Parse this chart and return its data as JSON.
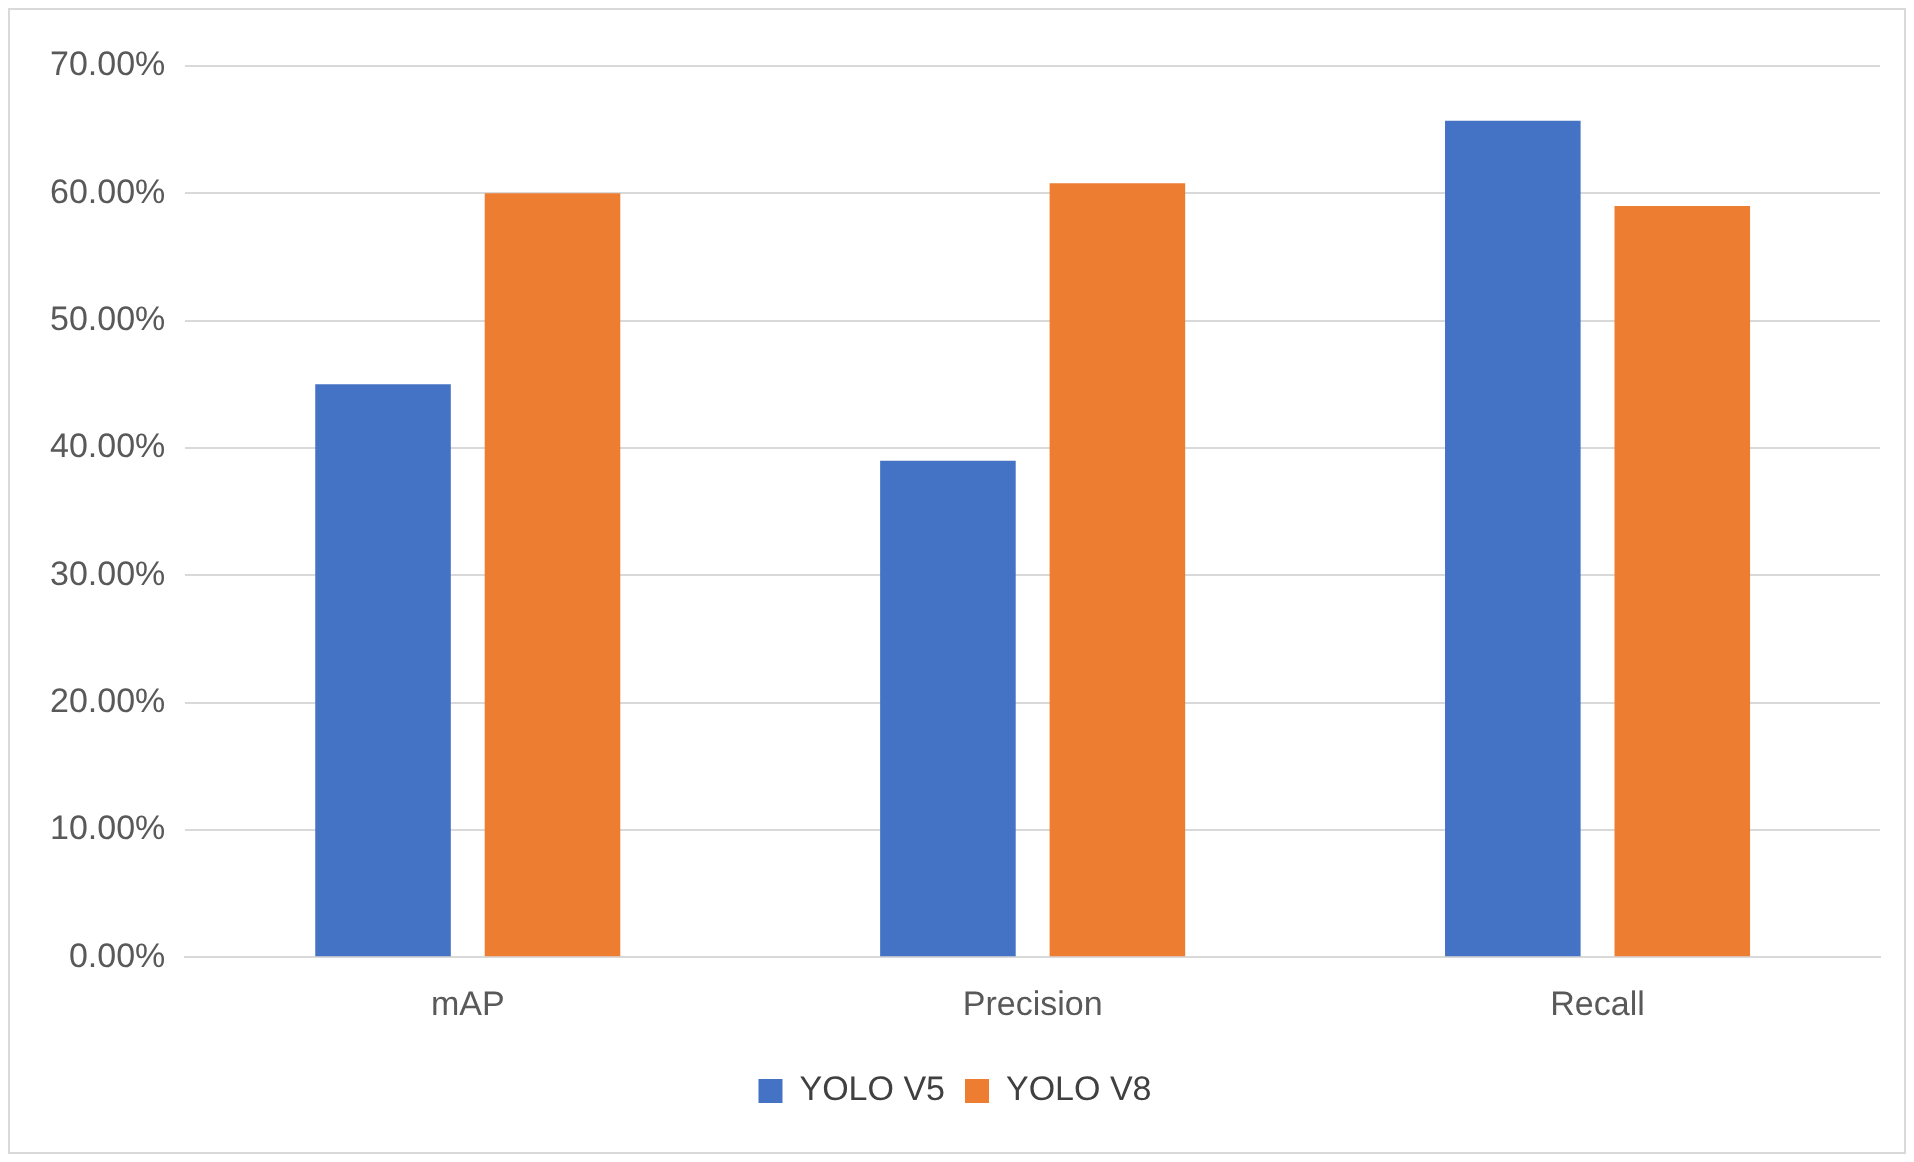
{
  "chart_data": {
    "type": "bar",
    "categories": [
      "mAP",
      "Precision",
      "Recall"
    ],
    "series": [
      {
        "name": "YOLO V5",
        "color": "#4472c4",
        "values": [
          45,
          39,
          65.7
        ]
      },
      {
        "name": "YOLO V8",
        "color": "#ed7d31",
        "values": [
          60,
          60.8,
          59
        ]
      }
    ],
    "ylim": [
      0,
      70
    ],
    "yticks": [
      {
        "value": 0,
        "label": "0.00%"
      },
      {
        "value": 10,
        "label": "10.00%"
      },
      {
        "value": 20,
        "label": "20.00%"
      },
      {
        "value": 30,
        "label": "30.00%"
      },
      {
        "value": 40,
        "label": "40.00%"
      },
      {
        "value": 50,
        "label": "50.00%"
      },
      {
        "value": 60,
        "label": "60.00%"
      },
      {
        "value": 70,
        "label": "70.00%"
      }
    ],
    "grid": "y",
    "legend": "bottom"
  }
}
